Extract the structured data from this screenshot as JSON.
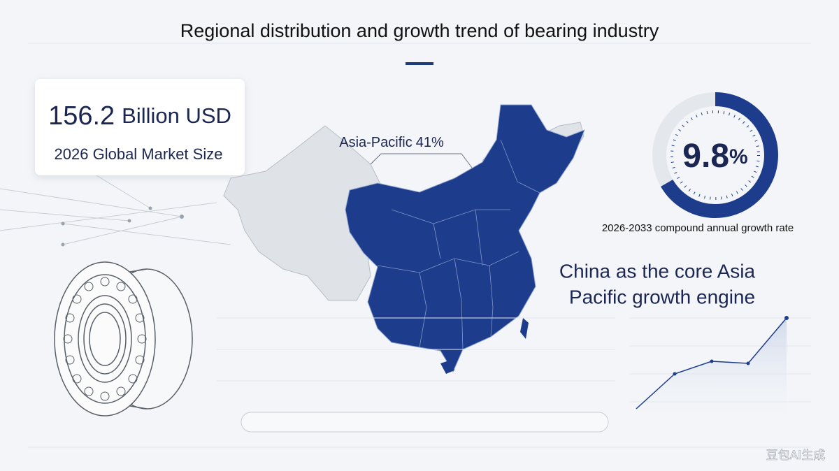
{
  "header": {
    "title": "Regional distribution and growth trend of bearing industry"
  },
  "market": {
    "value": "156.2",
    "unit": "Billion USD",
    "label": "2026 Global Market Size"
  },
  "map": {
    "region": "Asia-Pacific",
    "share": "41%"
  },
  "growth": {
    "value": "9.8",
    "unit": "%",
    "label": "2026-2033 compound annual growth rate"
  },
  "caption": {
    "lines": [
      "China as the core Asia",
      "Pacific growth engine"
    ]
  },
  "watermark": "豆包AI生成"
}
